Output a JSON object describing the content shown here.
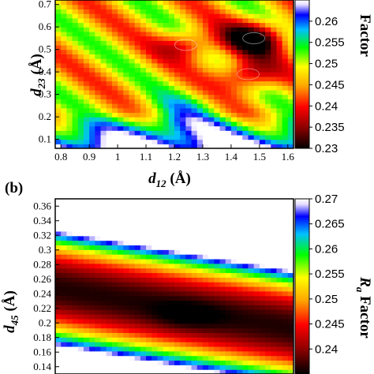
{
  "chart_data": [
    {
      "type": "heatmap",
      "panel": "(a)",
      "xlabel": "d12 (Å)",
      "ylabel": "d23 (Å)",
      "xlabel_parts": {
        "base": "d",
        "sub": "12",
        "unit": " (Å)"
      },
      "ylabel_parts": {
        "base": "d",
        "sub": "23",
        "unit": " (Å)"
      },
      "x_ticks": [
        "0.8",
        "0.9",
        "1",
        "1.1",
        "1.2",
        "1.3",
        "1.4",
        "1.5",
        "1.6"
      ],
      "y_ticks": [
        "0.1",
        "0.2",
        "0.3",
        "0.4",
        "0.5",
        "0.6",
        "0.7"
      ],
      "xlim": [
        0.78,
        1.62
      ],
      "ylim": [
        0.06,
        0.72
      ],
      "colorbar": {
        "label_base": "R",
        "label_sub": "a",
        "label_text": " Factor",
        "visible_label": "Factor",
        "ticks": [
          "0.23",
          "0.235",
          "0.24",
          "0.245",
          "0.25",
          "0.255",
          "0.26"
        ],
        "range": [
          0.23,
          0.265
        ]
      },
      "minima": [
        {
          "x": 1.48,
          "y": 0.55,
          "value": 0.23
        },
        {
          "x": 1.46,
          "y": 0.39,
          "value": 0.233
        },
        {
          "x": 1.24,
          "y": 0.52,
          "value": 0.235
        }
      ]
    },
    {
      "type": "heatmap",
      "panel": "(b)",
      "xlabel": "",
      "ylabel": "d45 (Å)",
      "ylabel_parts": {
        "base": "d",
        "sub": "45",
        "unit": " (Å)"
      },
      "y_ticks": [
        "0.14",
        "0.16",
        "0.18",
        "0.2",
        "0.22",
        "0.24",
        "0.26",
        "0.28",
        "0.3",
        "0.32",
        "0.34",
        "0.36"
      ],
      "ylim": [
        0.13,
        0.37
      ],
      "xlim": [
        0.0,
        1.0
      ],
      "colorbar": {
        "label_base": "R",
        "label_sub": "a",
        "label_text": " Factor",
        "visible_label": "Ra Factor",
        "ticks": [
          "0.24",
          "0.245",
          "0.25",
          "0.255",
          "0.26",
          "0.265",
          "0.27"
        ],
        "range": [
          0.235,
          0.27
        ]
      },
      "minimum": {
        "y": 0.21,
        "value": 0.236
      }
    }
  ],
  "colors": {
    "scale": [
      "#000000",
      "#8b0000",
      "#ff0000",
      "#ffa500",
      "#ffff00",
      "#00ff00",
      "#00bfff",
      "#0000ff",
      "#e8e0ff",
      "#ffffff"
    ]
  }
}
